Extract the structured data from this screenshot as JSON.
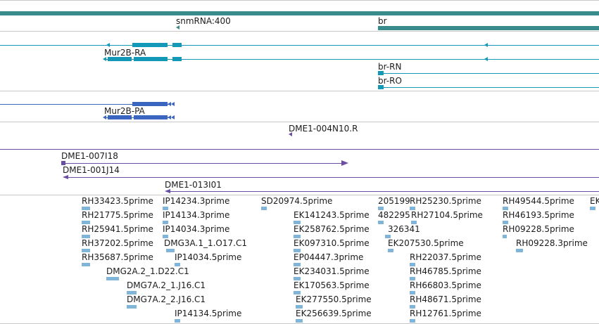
{
  "colors": {
    "track_teal": "#3a8c8c",
    "transcript_cyan": "#1498b8",
    "protein_blue": "#3a66c0",
    "clone_purple": "#6a4ea6",
    "est_lightblue": "#80b4d8",
    "separator": "#c8c8c8",
    "label_text": "#1c1c1c"
  },
  "tracks": {
    "gene_labels": [
      "snmRNA:400",
      "br"
    ],
    "transcript_labels": [
      "Mur2B-RA",
      "br-RN",
      "br-RO"
    ],
    "protein_labels": [
      "Mur2B-PA"
    ],
    "clone_labels": [
      "DME1-004N10.R",
      "DME1-007I18",
      "DME1-001J14",
      "DME1-013I01"
    ],
    "est_labels": [
      "RH33423.5prime",
      "RH21775.5prime",
      "RH25941.5prime",
      "RH37202.5prime",
      "RH35687.5prime",
      "DMG2A.2_1.D22.C1",
      "DMG7A.2_1.J16.C1",
      "DMG7A.2_2.J16.C1",
      "IP14234.3prime",
      "IP14134.3prime",
      "IP14034.3prime",
      "DMG3A.1_1.O17.C1",
      "IP14034.5prime",
      "IP14134.5prime",
      "SD20974.5prime",
      "EK141243.5prime",
      "EK258762.5prime",
      "EK097310.5prime",
      "EP04447.3prime",
      "EK234031.5prime",
      "EK170563.5prime",
      "EK277550.5prime",
      "EK256639.5prime",
      "205199",
      "482295",
      "326341",
      "EK207530.5prime",
      "RH25230.5prime",
      "RH27104.5prime",
      "RH22037.5prime",
      "RH46785.5prime",
      "RH66803.5prime",
      "RH48671.5prime",
      "RH12761.5prime",
      "RH49544.5prime",
      "RH46193.5prime",
      "RH09228.5prime",
      "RH09228.3prime",
      "EK"
    ]
  }
}
